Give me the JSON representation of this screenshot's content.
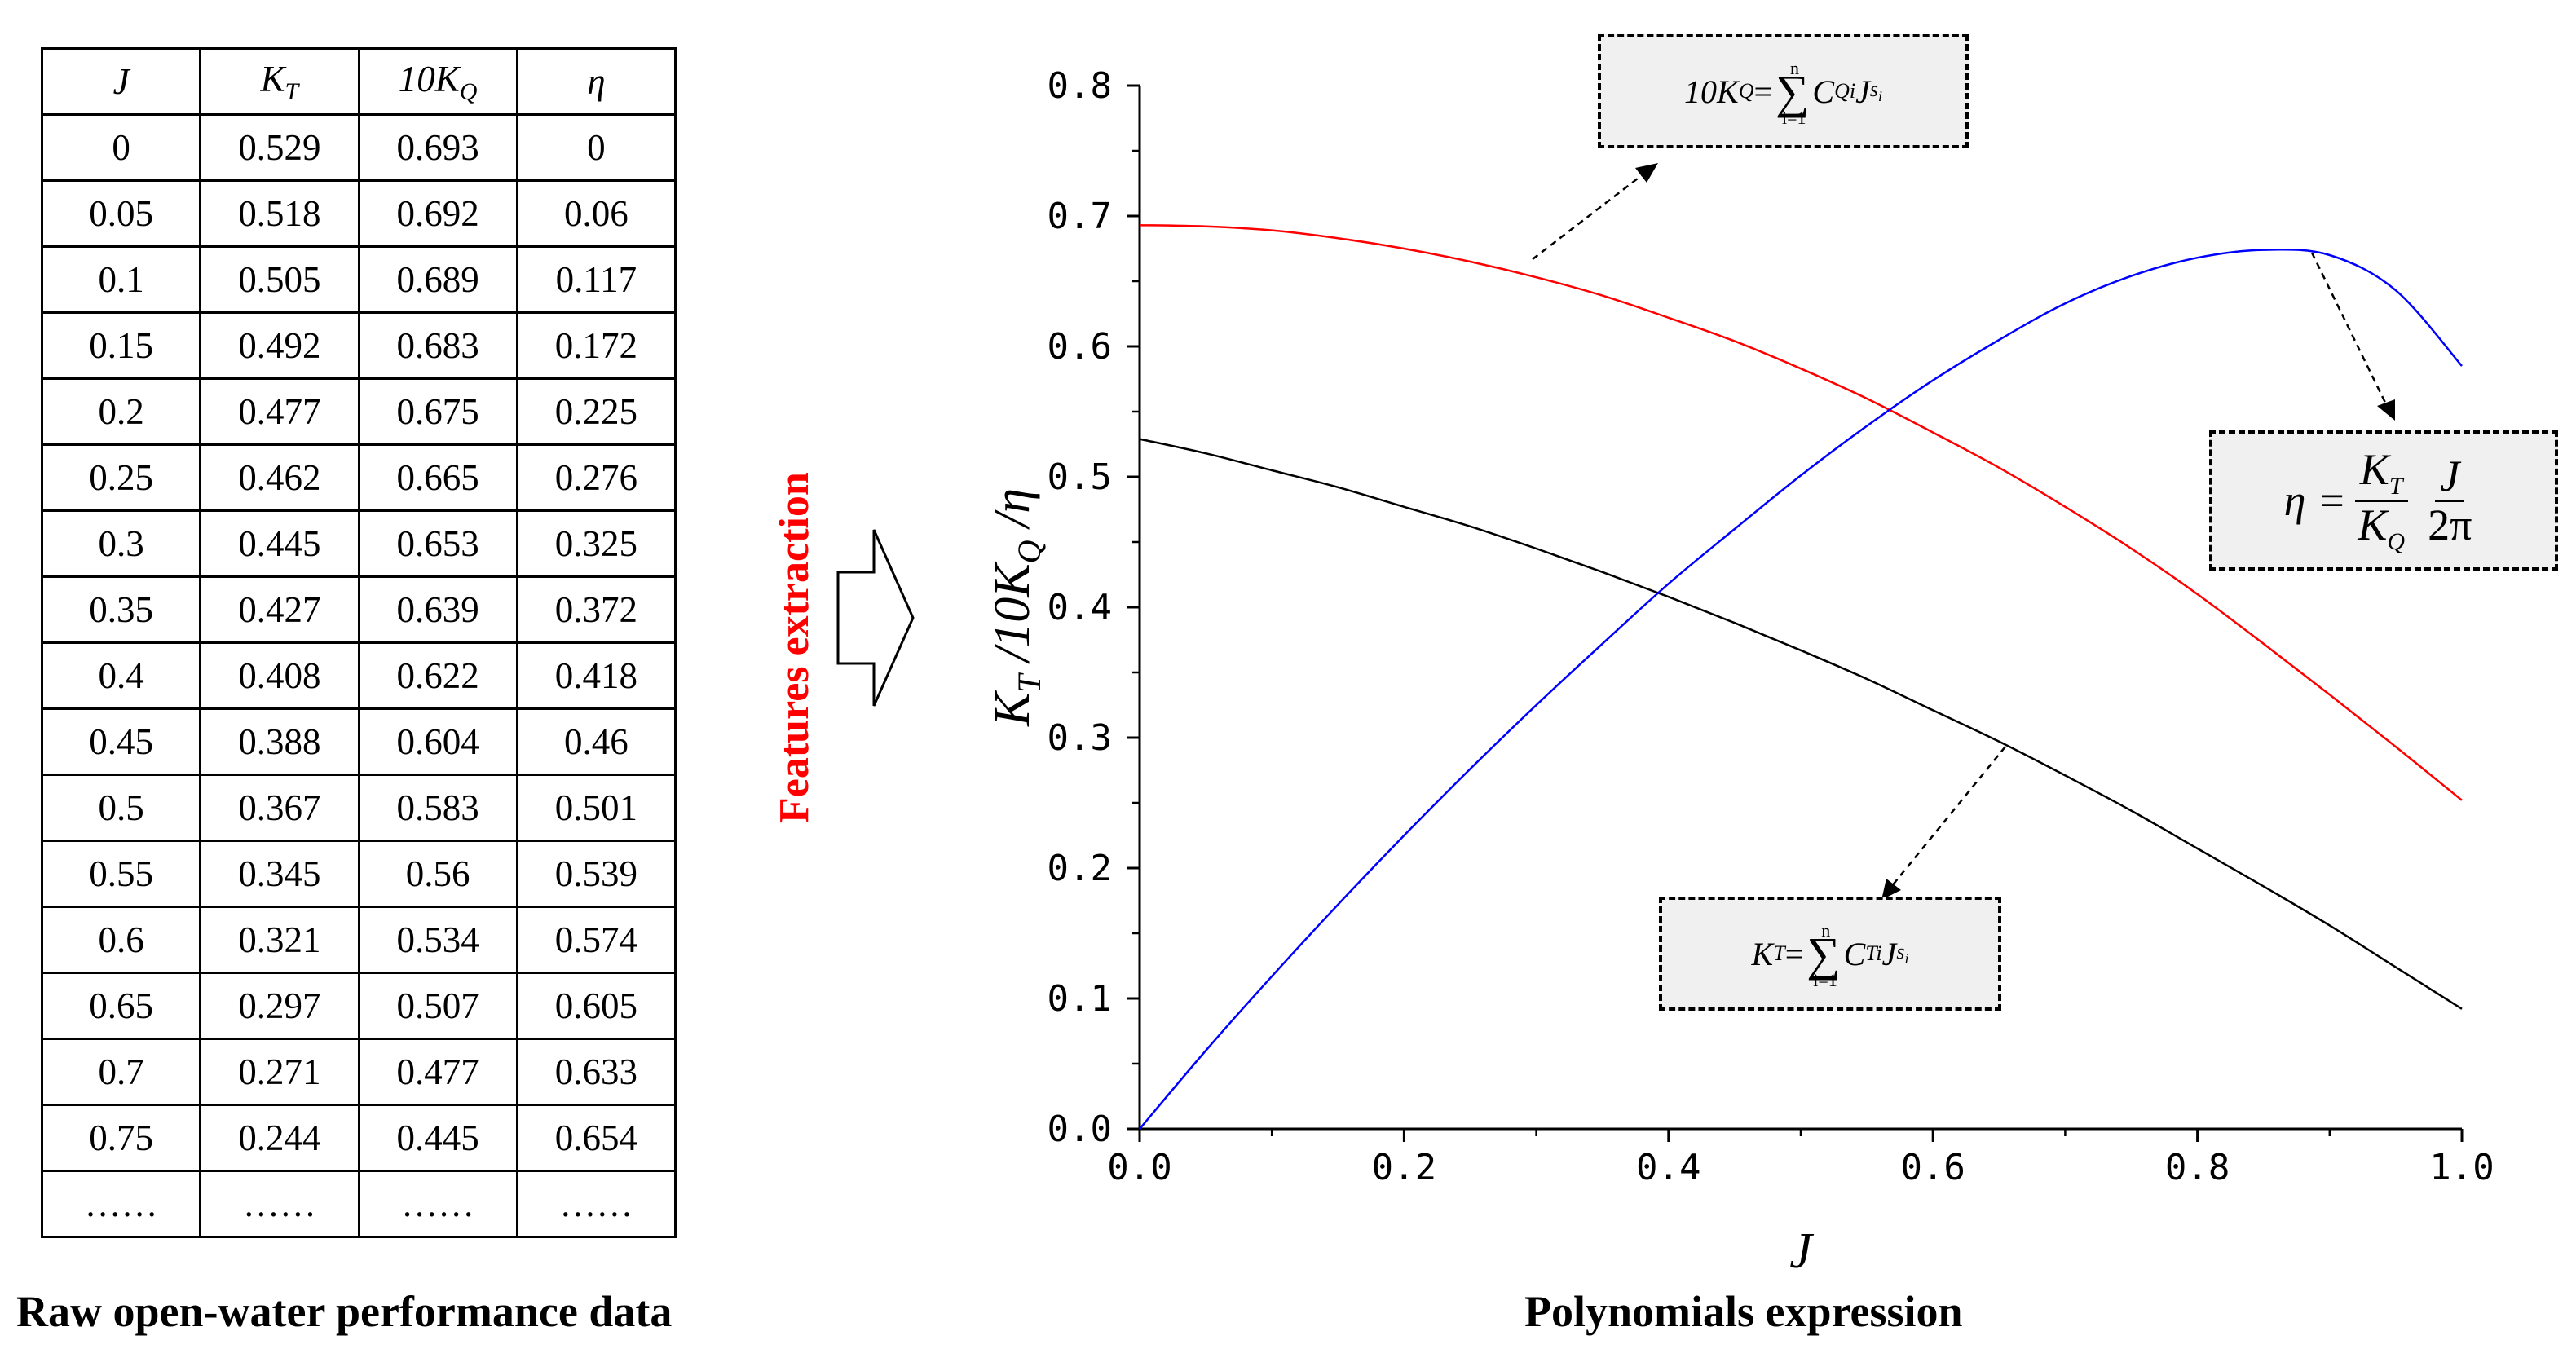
{
  "table": {
    "headers": [
      "J",
      "K",
      "T",
      "10K",
      "Q",
      "η"
    ],
    "rows": [
      [
        "0",
        "0.529",
        "0.693",
        "0"
      ],
      [
        "0.05",
        "0.518",
        "0.692",
        "0.06"
      ],
      [
        "0.1",
        "0.505",
        "0.689",
        "0.117"
      ],
      [
        "0.15",
        "0.492",
        "0.683",
        "0.172"
      ],
      [
        "0.2",
        "0.477",
        "0.675",
        "0.225"
      ],
      [
        "0.25",
        "0.462",
        "0.665",
        "0.276"
      ],
      [
        "0.3",
        "0.445",
        "0.653",
        "0.325"
      ],
      [
        "0.35",
        "0.427",
        "0.639",
        "0.372"
      ],
      [
        "0.4",
        "0.408",
        "0.622",
        "0.418"
      ],
      [
        "0.45",
        "0.388",
        "0.604",
        "0.46"
      ],
      [
        "0.5",
        "0.367",
        "0.583",
        "0.501"
      ],
      [
        "0.55",
        "0.345",
        "0.56",
        "0.539"
      ],
      [
        "0.6",
        "0.321",
        "0.534",
        "0.574"
      ],
      [
        "0.65",
        "0.297",
        "0.507",
        "0.605"
      ],
      [
        "0.7",
        "0.271",
        "0.477",
        "0.633"
      ],
      [
        "0.75",
        "0.244",
        "0.445",
        "0.654"
      ],
      [
        "……",
        "……",
        "……",
        "……"
      ]
    ],
    "caption": "Raw open-water performance data"
  },
  "arrow_label": "Features extraction",
  "chart_caption": "Polynomials expression",
  "formulas": {
    "kq": {
      "lhs": "10K",
      "lhs_sub": "Q",
      "eq": " = ",
      "sum_top": "n",
      "sum_bottom": "i=1",
      "term": "C",
      "term_sub": "Qi",
      "var": "J",
      "exp": "s",
      "exp_sub": "i"
    },
    "kt": {
      "lhs": "K",
      "lhs_sub": "T",
      "eq": " = ",
      "sum_top": "n",
      "sum_bottom": "i=1",
      "term": "C",
      "term_sub": "Ti",
      "var": "J",
      "exp": "s",
      "exp_sub": "i"
    },
    "eta": {
      "lhs": "η = ",
      "num1": "K",
      "num1_sub": "T",
      "den1": "K",
      "den1_sub": "Q",
      "num2": "J",
      "den2": "2π"
    }
  },
  "colors": {
    "kt": "#000000",
    "kq": "#ff0000",
    "eta": "#0000ff"
  },
  "chart_data": {
    "type": "line",
    "xlabel": "J",
    "ylabel_parts": [
      "K",
      "T",
      " /10K",
      "Q",
      " /η"
    ],
    "xlim": [
      0,
      1.0
    ],
    "ylim": [
      0,
      0.8
    ],
    "xticks": [
      "0.0",
      "0.2",
      "0.4",
      "0.6",
      "0.8",
      "1.0"
    ],
    "yticks": [
      "0.0",
      "0.1",
      "0.2",
      "0.3",
      "0.4",
      "0.5",
      "0.6",
      "0.7",
      "0.8"
    ],
    "x": [
      0,
      0.05,
      0.1,
      0.15,
      0.2,
      0.25,
      0.3,
      0.35,
      0.4,
      0.45,
      0.5,
      0.55,
      0.6,
      0.65,
      0.7,
      0.75,
      0.8,
      0.85,
      0.9,
      0.95,
      1.0
    ],
    "series": [
      {
        "name": "K_T",
        "color": "#000000",
        "values": [
          0.529,
          0.518,
          0.505,
          0.492,
          0.477,
          0.462,
          0.445,
          0.427,
          0.408,
          0.388,
          0.367,
          0.345,
          0.321,
          0.297,
          0.271,
          0.244,
          0.215,
          0.186,
          0.156,
          0.124,
          0.092
        ]
      },
      {
        "name": "10K_Q",
        "color": "#ff0000",
        "values": [
          0.693,
          0.692,
          0.689,
          0.683,
          0.675,
          0.665,
          0.653,
          0.639,
          0.622,
          0.604,
          0.583,
          0.56,
          0.534,
          0.507,
          0.477,
          0.445,
          0.41,
          0.372,
          0.333,
          0.293,
          0.252
        ]
      },
      {
        "name": "η",
        "color": "#0000ff",
        "values": [
          0,
          0.06,
          0.117,
          0.172,
          0.225,
          0.276,
          0.325,
          0.372,
          0.418,
          0.46,
          0.501,
          0.539,
          0.574,
          0.605,
          0.633,
          0.654,
          0.668,
          0.674,
          0.67,
          0.643,
          0.585
        ]
      }
    ]
  }
}
